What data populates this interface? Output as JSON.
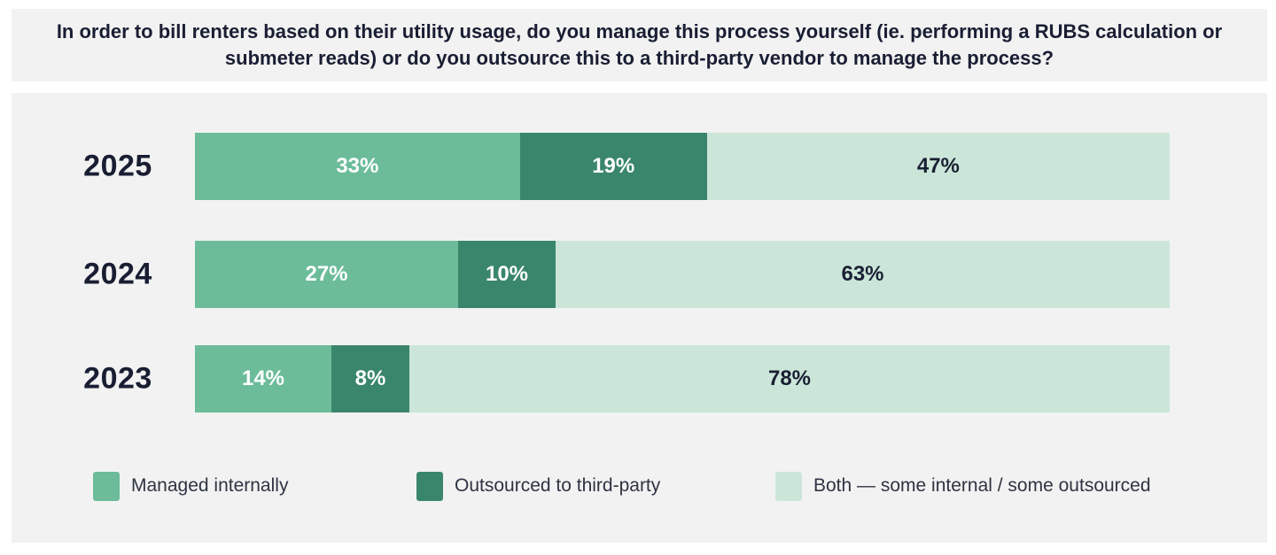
{
  "title": {
    "text": "In order to bill renters based on their utility usage, do you manage this process yourself (ie. performing a RUBS calculation or submeter reads) or do you outsource this to a third-party vendor to manage the process?"
  },
  "chart_data": {
    "type": "bar",
    "orientation": "horizontal-stacked",
    "title": "In order to bill renters based on their utility usage, do you manage this process yourself (ie. performing a RUBS calculation or submeter reads) or do you outsource this to a third-party vendor to manage the process?",
    "categories": [
      "2025",
      "2024",
      "2023"
    ],
    "series": [
      {
        "name": "Managed internally",
        "color": "#6CBC9A",
        "label_color": "#FFFFFF",
        "values": [
          33,
          27,
          14
        ]
      },
      {
        "name": "Outsourced to third-party",
        "color": "#3A866D",
        "label_color": "#FFFFFF",
        "values": [
          19,
          10,
          8
        ]
      },
      {
        "name": "Both — some internal / some outsourced",
        "color": "#CBE6D9",
        "label_color": "#1A2033",
        "values": [
          47,
          63,
          78
        ]
      }
    ],
    "value_suffix": "%",
    "xlim": [
      0,
      100
    ],
    "grid": false,
    "legend_position": "bottom"
  },
  "colors": {
    "page_background": "#FFFFFF",
    "band_background": "#F2F2F2",
    "heading_text": "#191E33",
    "legend_text": "#2F3342"
  }
}
